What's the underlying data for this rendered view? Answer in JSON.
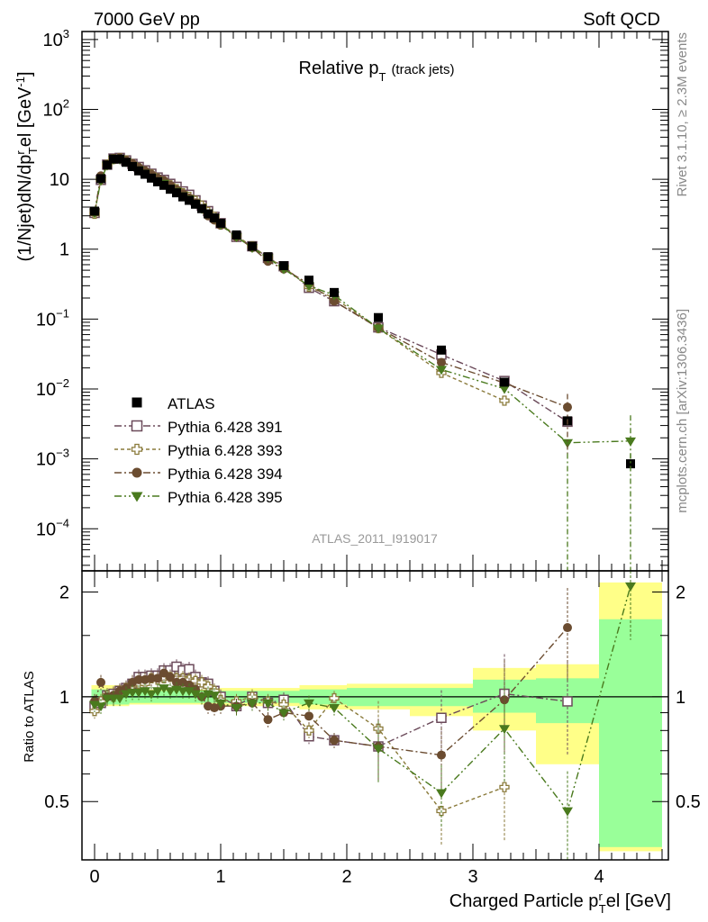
{
  "header": {
    "left": "7000 GeV pp",
    "right": "Soft QCD"
  },
  "side_labels": {
    "rivet": "Rivet 3.1.10, ≥ 2.3M events",
    "mcplots": "mcplots.cern.ch [arXiv:1306.3436]"
  },
  "chart_data": [
    {
      "type": "scatter",
      "panel": "main",
      "title": "Relative p_T (track jets)",
      "title_main": "Relative p",
      "title_sub": "T",
      "title_small": "(track jets)",
      "analysis_label": "ATLAS_2011_I919017",
      "ylabel": "(1/Njet)dN/dp^rel_T [GeV^-1]",
      "xlabel": "Charged Particle p_T^rel [GeV]",
      "ylog": true,
      "xlim": [
        -0.1,
        4.55
      ],
      "ylim": [
        2.5e-05,
        1300
      ],
      "legend_position": "bottom-left",
      "y_ticks": [
        {
          "value": 0.0001,
          "base": "10",
          "exp": "−4"
        },
        {
          "value": 0.001,
          "base": "10",
          "exp": "−3"
        },
        {
          "value": 0.01,
          "base": "10",
          "exp": "−2"
        },
        {
          "value": 0.1,
          "base": "10",
          "exp": "−1"
        },
        {
          "value": 1,
          "base": "1",
          "exp": ""
        },
        {
          "value": 10,
          "base": "10",
          "exp": ""
        },
        {
          "value": 100,
          "base": "10",
          "exp": "2"
        },
        {
          "value": 1000,
          "base": "10",
          "exp": "3"
        }
      ],
      "series": [
        {
          "name": "ATLAS",
          "marker": "square",
          "color": "#000000",
          "x": [
            0.0,
            0.05,
            0.1,
            0.15,
            0.2,
            0.25,
            0.3,
            0.35,
            0.4,
            0.45,
            0.5,
            0.55,
            0.6,
            0.65,
            0.7,
            0.75,
            0.8,
            0.85,
            0.9,
            0.95,
            1.0,
            1.125,
            1.25,
            1.375,
            1.5,
            1.7,
            1.9,
            2.25,
            2.75,
            3.25,
            3.75,
            4.25
          ],
          "y": [
            3.5,
            10.2,
            16.0,
            19.5,
            19.5,
            17.5,
            15.2,
            13.2,
            11.8,
            10.4,
            9.2,
            8.2,
            7.2,
            6.4,
            5.6,
            5.0,
            4.4,
            3.8,
            3.2,
            2.8,
            2.35,
            1.6,
            1.1,
            0.78,
            0.58,
            0.36,
            0.24,
            0.105,
            0.036,
            0.0125,
            0.0035,
            0.00085
          ]
        },
        {
          "name": "Pythia 6.428 391",
          "marker": "open-square",
          "color": "#6b4a5a",
          "x": [
            0.0,
            0.05,
            0.1,
            0.15,
            0.2,
            0.25,
            0.3,
            0.35,
            0.4,
            0.45,
            0.5,
            0.55,
            0.6,
            0.65,
            0.7,
            0.75,
            0.8,
            0.85,
            0.9,
            0.95,
            1.0,
            1.125,
            1.25,
            1.375,
            1.5,
            1.7,
            1.9,
            2.25,
            2.75,
            3.25,
            3.75
          ],
          "y": [
            3.3,
            9.8,
            16.2,
            19.8,
            20.2,
            18.6,
            16.6,
            15.0,
            13.4,
            12.0,
            10.6,
            9.8,
            8.6,
            7.8,
            6.7,
            6.0,
            5.0,
            4.2,
            3.5,
            2.9,
            2.35,
            1.5,
            1.1,
            0.75,
            0.57,
            0.28,
            0.18,
            0.076,
            0.031,
            0.013,
            0.0034
          ]
        },
        {
          "name": "Pythia 6.428 393",
          "marker": "open-cross",
          "color": "#8a7a3a",
          "x": [
            0.0,
            0.05,
            0.1,
            0.15,
            0.2,
            0.25,
            0.3,
            0.35,
            0.4,
            0.45,
            0.5,
            0.55,
            0.6,
            0.65,
            0.7,
            0.75,
            0.8,
            0.85,
            0.9,
            0.95,
            1.0,
            1.125,
            1.25,
            1.375,
            1.5,
            1.7,
            1.9,
            2.25,
            2.75,
            3.25
          ],
          "y": [
            3.2,
            9.9,
            16.2,
            19.5,
            20.0,
            18.6,
            16.4,
            14.4,
            12.9,
            11.7,
            10.3,
            9.3,
            8.2,
            7.2,
            6.3,
            5.6,
            4.9,
            4.2,
            3.4,
            2.9,
            2.3,
            1.55,
            1.1,
            0.76,
            0.55,
            0.29,
            0.2,
            0.074,
            0.017,
            0.0068
          ]
        },
        {
          "name": "Pythia 6.428 394",
          "marker": "circle",
          "color": "#6b4c30",
          "x": [
            0.0,
            0.05,
            0.1,
            0.15,
            0.2,
            0.25,
            0.3,
            0.35,
            0.4,
            0.45,
            0.5,
            0.55,
            0.6,
            0.65,
            0.7,
            0.75,
            0.8,
            0.85,
            0.9,
            0.95,
            1.0,
            1.125,
            1.25,
            1.375,
            1.5,
            1.7,
            1.9,
            2.25,
            2.75,
            3.25,
            3.75
          ],
          "y": [
            3.4,
            11.2,
            16.0,
            19.6,
            20.2,
            18.6,
            16.8,
            14.8,
            13.2,
            11.8,
            10.4,
            9.6,
            8.2,
            7.1,
            6.2,
            5.4,
            4.6,
            3.8,
            3.0,
            2.6,
            2.2,
            1.5,
            1.05,
            0.67,
            0.52,
            0.32,
            0.18,
            0.075,
            0.024,
            0.0122,
            0.0055
          ]
        },
        {
          "name": "Pythia 6.428 395",
          "marker": "triangle-down",
          "color": "#4a7a1e",
          "x": [
            0.0,
            0.05,
            0.1,
            0.15,
            0.2,
            0.25,
            0.3,
            0.35,
            0.4,
            0.45,
            0.5,
            0.55,
            0.6,
            0.65,
            0.7,
            0.75,
            0.8,
            0.85,
            0.9,
            0.95,
            1.0,
            1.125,
            1.25,
            1.375,
            1.5,
            1.7,
            1.9,
            2.25,
            2.75,
            3.25,
            3.75,
            4.25
          ],
          "y": [
            3.3,
            9.6,
            15.8,
            19.3,
            19.3,
            17.8,
            15.6,
            13.6,
            12.2,
            10.6,
            9.5,
            8.7,
            7.4,
            6.7,
            5.8,
            5.2,
            4.5,
            3.8,
            3.3,
            2.8,
            2.25,
            1.5,
            1.05,
            0.75,
            0.52,
            0.3,
            0.22,
            0.074,
            0.019,
            0.0101,
            0.0017,
            0.0018
          ]
        }
      ]
    },
    {
      "type": "scatter",
      "panel": "ratio",
      "ylabel": "Ratio to ATLAS",
      "xlabel": "Charged Particle p_T^rel [GeV]",
      "xlim": [
        -0.1,
        4.55
      ],
      "ylim": [
        0.34,
        2.3
      ],
      "x_ticks": [
        "0",
        "1",
        "2",
        "3",
        "4"
      ],
      "y_ticks": [
        "0.5",
        "1",
        "2"
      ],
      "reference_line": 1,
      "uncertainty_band_colors": {
        "inner": "#99ff99",
        "outer": "#ffff88"
      },
      "uncertainty_bands": [
        {
          "x0": -0.025,
          "x1": 0.275,
          "inner": [
            0.95,
            1.05
          ],
          "outer": [
            0.94,
            1.08
          ]
        },
        {
          "x0": 0.275,
          "x1": 0.975,
          "inner": [
            0.96,
            1.04
          ],
          "outer": [
            0.95,
            1.05
          ]
        },
        {
          "x0": 0.975,
          "x1": 1.625,
          "inner": [
            0.96,
            1.04
          ],
          "outer": [
            0.94,
            1.06
          ]
        },
        {
          "x0": 1.625,
          "x1": 2.0,
          "inner": [
            0.95,
            1.05
          ],
          "outer": [
            0.92,
            1.08
          ]
        },
        {
          "x0": 2.0,
          "x1": 2.5,
          "inner": [
            0.94,
            1.06
          ],
          "outer": [
            0.92,
            1.09
          ]
        },
        {
          "x0": 2.5,
          "x1": 3.0,
          "inner": [
            0.94,
            1.06
          ],
          "outer": [
            0.88,
            1.09
          ]
        },
        {
          "x0": 3.0,
          "x1": 3.5,
          "inner": [
            0.9,
            1.12
          ],
          "outer": [
            0.8,
            1.21
          ]
        },
        {
          "x0": 3.5,
          "x1": 4.0,
          "inner": [
            0.84,
            1.13
          ],
          "outer": [
            0.64,
            1.24
          ]
        },
        {
          "x0": 4.0,
          "x1": 4.5,
          "inner": [
            0.37,
            1.67
          ],
          "outer": [
            0.36,
            2.13
          ]
        }
      ],
      "series": [
        {
          "name": "Pythia 6.428 391",
          "x": [
            0.0,
            0.05,
            0.1,
            0.15,
            0.2,
            0.25,
            0.3,
            0.35,
            0.4,
            0.45,
            0.5,
            0.55,
            0.6,
            0.65,
            0.7,
            0.75,
            0.8,
            0.85,
            0.9,
            0.95,
            1.0,
            1.125,
            1.25,
            1.375,
            1.5,
            1.7,
            1.9,
            2.25,
            2.75,
            3.25,
            3.75
          ],
          "y": [
            0.94,
            0.96,
            1.01,
            1.02,
            1.04,
            1.06,
            1.09,
            1.14,
            1.14,
            1.15,
            1.15,
            1.19,
            1.19,
            1.22,
            1.19,
            1.2,
            1.14,
            1.1,
            1.09,
            1.04,
            1.0,
            0.94,
            1.0,
            0.96,
            0.98,
            0.77,
            0.75,
            0.72,
            0.87,
            1.02,
            0.97
          ]
        },
        {
          "name": "Pythia 6.428 393",
          "x": [
            0.0,
            0.05,
            0.1,
            0.15,
            0.2,
            0.25,
            0.3,
            0.35,
            0.4,
            0.45,
            0.5,
            0.55,
            0.6,
            0.65,
            0.7,
            0.75,
            0.8,
            0.85,
            0.9,
            0.95,
            1.0,
            1.125,
            1.25,
            1.375,
            1.5,
            1.7,
            1.9,
            2.25,
            2.75,
            3.25
          ],
          "y": [
            0.91,
            0.97,
            1.01,
            1.0,
            1.03,
            1.06,
            1.08,
            1.09,
            1.09,
            1.13,
            1.12,
            1.13,
            1.14,
            1.13,
            1.13,
            1.12,
            1.11,
            1.1,
            1.07,
            1.04,
            0.98,
            0.97,
            1.0,
            0.97,
            0.95,
            0.8,
            0.99,
            0.81,
            0.47,
            0.55
          ]
        },
        {
          "name": "Pythia 6.428 394",
          "x": [
            0.0,
            0.05,
            0.1,
            0.15,
            0.2,
            0.25,
            0.3,
            0.35,
            0.4,
            0.45,
            0.5,
            0.55,
            0.6,
            0.65,
            0.7,
            0.75,
            0.8,
            0.85,
            0.9,
            0.95,
            1.0,
            1.125,
            1.25,
            1.375,
            1.5,
            1.7,
            1.9,
            2.25,
            2.75,
            3.25,
            3.75
          ],
          "y": [
            0.97,
            1.1,
            1.0,
            1.01,
            1.04,
            1.06,
            1.1,
            1.12,
            1.12,
            1.13,
            1.13,
            1.17,
            1.14,
            1.1,
            1.1,
            1.08,
            1.05,
            1.0,
            0.94,
            0.93,
            0.94,
            0.94,
            0.96,
            0.86,
            0.9,
            0.88,
            0.75,
            0.72,
            0.68,
            0.98,
            1.58
          ]
        },
        {
          "name": "Pythia 6.428 395",
          "x": [
            0.0,
            0.05,
            0.1,
            0.15,
            0.2,
            0.25,
            0.3,
            0.35,
            0.4,
            0.45,
            0.5,
            0.55,
            0.6,
            0.65,
            0.7,
            0.75,
            0.8,
            0.85,
            0.9,
            0.95,
            1.0,
            1.125,
            1.25,
            1.375,
            1.5,
            1.7,
            1.9,
            2.25,
            2.75,
            3.25,
            3.75,
            4.25
          ],
          "y": [
            0.95,
            0.94,
            0.99,
            0.99,
            0.99,
            1.02,
            1.03,
            1.03,
            1.04,
            1.02,
            1.04,
            1.06,
            1.04,
            1.05,
            1.04,
            1.04,
            1.02,
            1.0,
            1.02,
            1.01,
            0.96,
            0.93,
            0.96,
            0.96,
            0.9,
            0.96,
            0.93,
            0.71,
            0.53,
            0.81,
            0.47,
            2.08
          ]
        }
      ]
    }
  ]
}
